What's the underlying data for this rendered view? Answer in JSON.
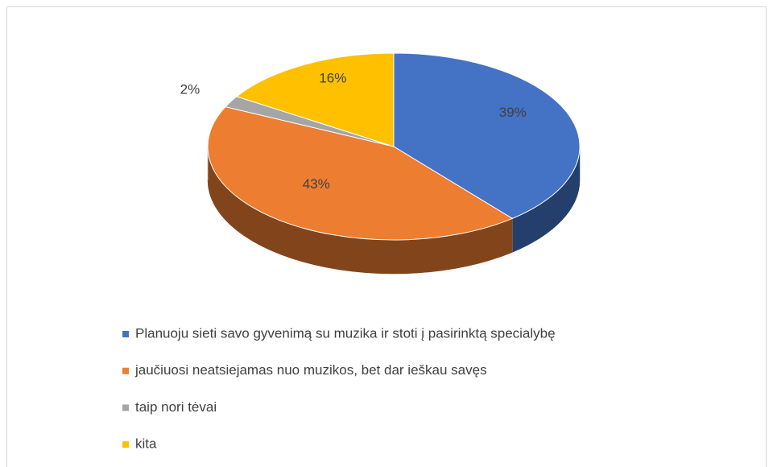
{
  "chart_data": {
    "type": "pie3d",
    "categories": [
      "Planuoju sieti savo gyvenimą su muzika ir stoti į pasirinktą specialybę",
      "jaučiuosi neatsiejamas nuo muzikos, bet dar ieškau savęs",
      "taip nori tėvai",
      "kita"
    ],
    "values": [
      39,
      43,
      2,
      16
    ],
    "value_labels": [
      "39%",
      "43%",
      "2%",
      "16%"
    ],
    "colors": [
      "#4472c4",
      "#ed7d31",
      "#a5a5a5",
      "#ffc000"
    ],
    "legend": "bottom"
  }
}
